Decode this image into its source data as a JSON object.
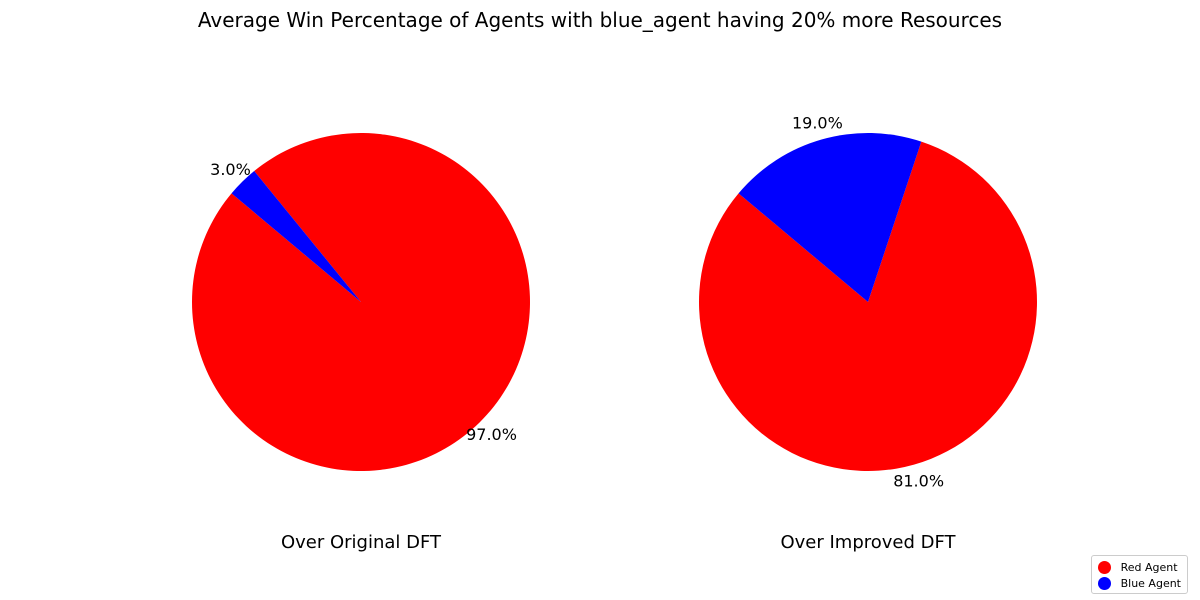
{
  "title": "Average Win Percentage of Agents with blue_agent having 20% more Resources",
  "chart_data": [
    {
      "type": "pie",
      "subtitle": "Over Original DFT",
      "slices": [
        {
          "label": "Red Agent",
          "value": 97.0,
          "display": "97.0%",
          "color": "#ff0000"
        },
        {
          "label": "Blue Agent",
          "value": 3.0,
          "display": "3.0%",
          "color": "#0000ff"
        }
      ]
    },
    {
      "type": "pie",
      "subtitle": "Over Improved DFT",
      "slices": [
        {
          "label": "Red Agent",
          "value": 81.0,
          "display": "81.0%",
          "color": "#ff0000"
        },
        {
          "label": "Blue Agent",
          "value": 19.0,
          "display": "19.0%",
          "color": "#0000ff"
        }
      ]
    }
  ],
  "legend": {
    "placement": "bottom-right",
    "items": [
      {
        "label": "Red Agent",
        "color": "#ff0000"
      },
      {
        "label": "Blue Agent",
        "color": "#0000ff"
      }
    ]
  }
}
